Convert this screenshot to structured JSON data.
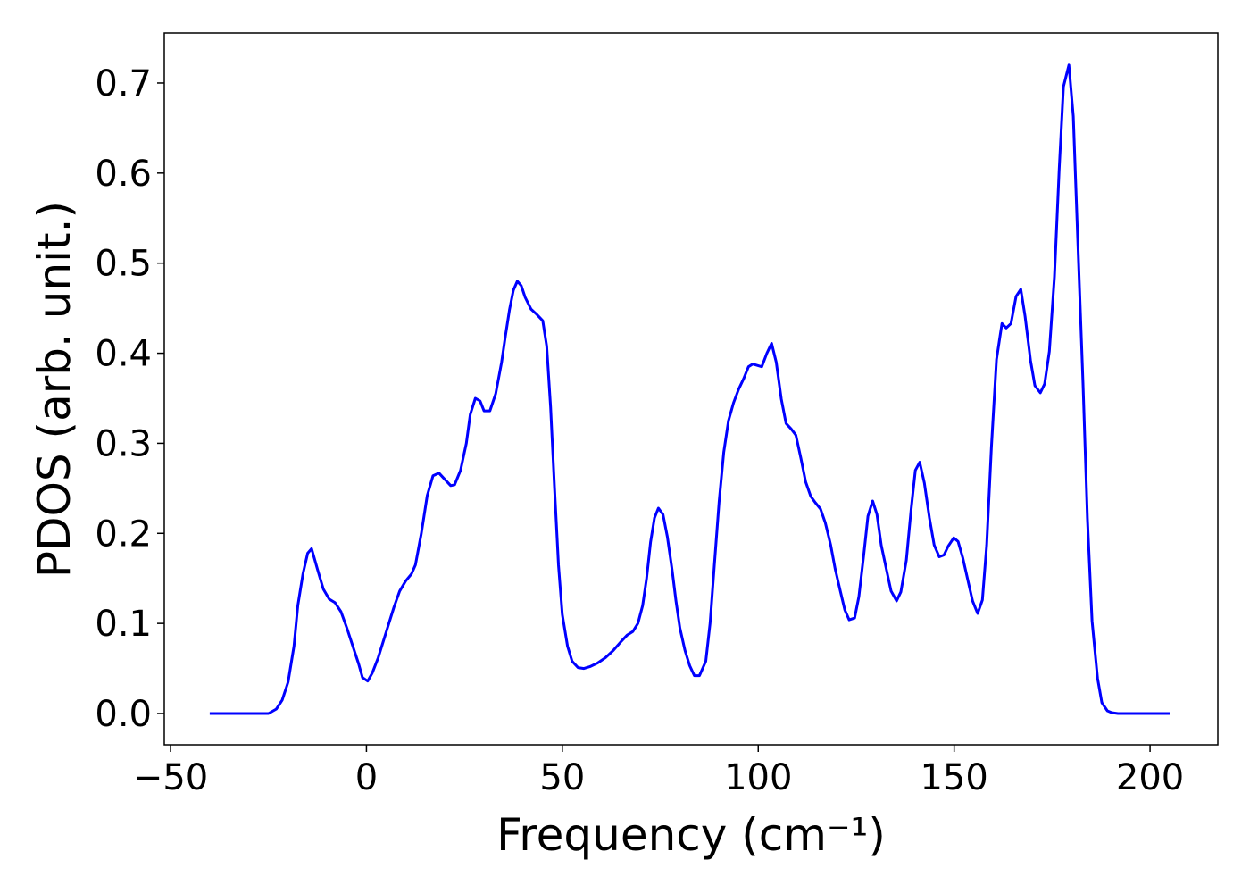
{
  "chart_data": {
    "type": "line",
    "xlabel": "Frequency (cm⁻¹)",
    "ylabel": "PDOS (arb. unit.)",
    "xlim": [
      -51.6,
      217.3
    ],
    "ylim": [
      -0.0347,
      0.7555
    ],
    "xticks": [
      -50,
      0,
      50,
      100,
      150,
      200
    ],
    "yticks": [
      {
        "value": 0,
        "label": "0.0"
      },
      0.1,
      0.2,
      0.3,
      0.4,
      0.5,
      0.6,
      0.7
    ],
    "grid": false,
    "series": [
      {
        "color": "#0000ff",
        "x": [
          -40,
          -25,
          -23,
          -21.5,
          -20,
          -18.5,
          -17.5,
          -16.2,
          -15,
          -14,
          -12.5,
          -11,
          -9.5,
          -8,
          -6.5,
          -5,
          -3.5,
          -2,
          -1,
          0.3,
          1.5,
          3,
          5,
          7,
          8.5,
          10,
          11.5,
          12.5,
          14,
          15.5,
          17,
          18.5,
          20,
          21.5,
          22.5,
          24,
          25.5,
          26.5,
          27.8,
          29,
          30,
          31.5,
          33,
          34.5,
          35.5,
          36.5,
          37.5,
          38.5,
          39.5,
          40.5,
          42,
          43.5,
          45,
          46,
          47,
          48,
          49,
          50,
          51.3,
          52.5,
          54,
          55.5,
          57,
          59,
          61,
          63,
          65,
          66.5,
          68,
          69.3,
          70.5,
          71.5,
          72.5,
          73.5,
          74.5,
          75.7,
          76.8,
          78,
          79,
          80,
          81.3,
          82.5,
          83.7,
          85,
          86.6,
          87.7,
          88.8,
          90,
          91.2,
          92.4,
          93.7,
          95,
          96.3,
          97.5,
          98.6,
          100.9,
          102.2,
          103.4,
          104.6,
          105.9,
          107.1,
          108.4,
          109.6,
          110.9,
          112.1,
          113.4,
          114.6,
          115.9,
          117.1,
          118.5,
          119.6,
          121,
          122.1,
          123.2,
          124.6,
          125.7,
          126.9,
          128,
          129.2,
          130.3,
          131.4,
          132.8,
          133.9,
          135.3,
          136.4,
          137.8,
          139,
          140.1,
          141.2,
          142.4,
          143.7,
          144.9,
          146.2,
          147.4,
          148.5,
          149.9,
          151,
          152.2,
          153.5,
          154.7,
          156,
          157.2,
          158.3,
          159.5,
          160.8,
          162.2,
          163.3,
          164.5,
          165.8,
          167,
          168.1,
          169.5,
          170.6,
          172,
          173.1,
          174.3,
          175.6,
          176.8,
          177.9,
          179.3,
          180.4,
          181.5,
          182.9,
          184,
          185.2,
          186.6,
          187.7,
          189.1,
          190.2,
          191.8,
          205
        ],
        "values": [
          0,
          0,
          0.005,
          0.015,
          0.035,
          0.075,
          0.12,
          0.155,
          0.178,
          0.183,
          0.16,
          0.138,
          0.127,
          0.123,
          0.113,
          0.095,
          0.075,
          0.055,
          0.04,
          0.036,
          0.045,
          0.062,
          0.09,
          0.118,
          0.136,
          0.147,
          0.155,
          0.165,
          0.2,
          0.242,
          0.264,
          0.267,
          0.26,
          0.253,
          0.254,
          0.27,
          0.3,
          0.332,
          0.35,
          0.347,
          0.336,
          0.336,
          0.355,
          0.39,
          0.42,
          0.448,
          0.47,
          0.48,
          0.475,
          0.462,
          0.449,
          0.443,
          0.436,
          0.408,
          0.34,
          0.25,
          0.165,
          0.11,
          0.075,
          0.058,
          0.051,
          0.05,
          0.052,
          0.056,
          0.062,
          0.07,
          0.08,
          0.087,
          0.091,
          0.1,
          0.12,
          0.15,
          0.19,
          0.217,
          0.228,
          0.221,
          0.196,
          0.16,
          0.125,
          0.095,
          0.07,
          0.053,
          0.042,
          0.042,
          0.058,
          0.1,
          0.165,
          0.235,
          0.29,
          0.325,
          0.345,
          0.36,
          0.372,
          0.385,
          0.388,
          0.385,
          0.4,
          0.411,
          0.39,
          0.349,
          0.322,
          0.316,
          0.309,
          0.283,
          0.257,
          0.241,
          0.234,
          0.227,
          0.212,
          0.187,
          0.161,
          0.135,
          0.115,
          0.104,
          0.106,
          0.13,
          0.175,
          0.219,
          0.236,
          0.221,
          0.187,
          0.158,
          0.136,
          0.125,
          0.135,
          0.17,
          0.226,
          0.27,
          0.279,
          0.256,
          0.217,
          0.187,
          0.174,
          0.176,
          0.186,
          0.195,
          0.191,
          0.173,
          0.148,
          0.125,
          0.111,
          0.126,
          0.187,
          0.296,
          0.393,
          0.433,
          0.428,
          0.433,
          0.463,
          0.471,
          0.441,
          0.392,
          0.364,
          0.356,
          0.366,
          0.402,
          0.485,
          0.604,
          0.696,
          0.72,
          0.663,
          0.531,
          0.366,
          0.217,
          0.103,
          0.039,
          0.012,
          0.003,
          0.001,
          0,
          0
        ]
      }
    ]
  }
}
